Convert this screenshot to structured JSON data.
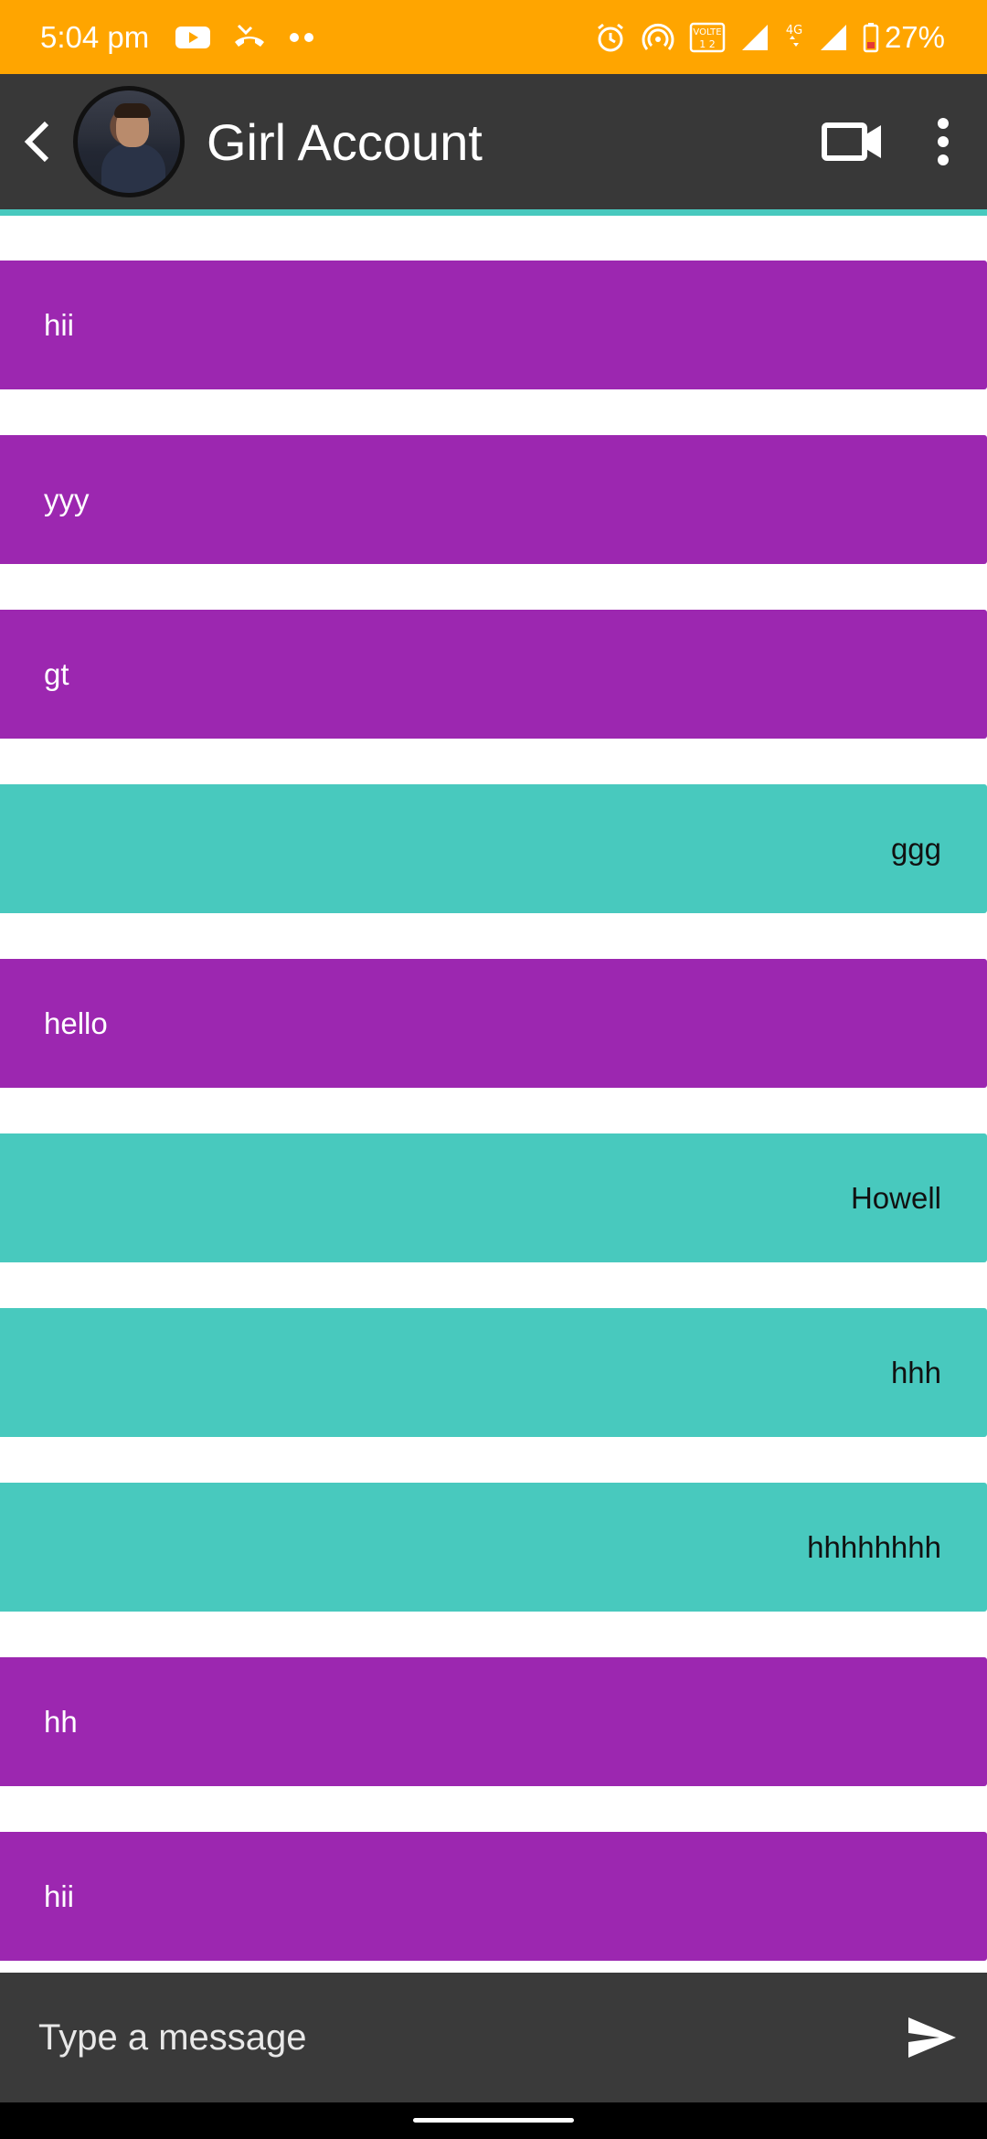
{
  "status_bar": {
    "time": "5:04 pm",
    "battery": "27%",
    "background": "#FFA500",
    "icons_left": [
      "youtube-icon",
      "missed-call-icon",
      "more-dots-icon"
    ],
    "icons_right": [
      "alarm-icon",
      "hotspot-icon",
      "volte-icon",
      "signal-icon",
      "4g-icon",
      "signal-icon",
      "battery-low-icon"
    ],
    "volte_label": "VOLTE",
    "network_label": "4G"
  },
  "header": {
    "title": "Girl Account",
    "background": "#383838",
    "accent": "#48C9BE"
  },
  "messages": [
    {
      "text": "hii",
      "from": "received"
    },
    {
      "text": "yyy",
      "from": "received"
    },
    {
      "text": "gt",
      "from": "received"
    },
    {
      "text": "ggg",
      "from": "sent"
    },
    {
      "text": "hello",
      "from": "received"
    },
    {
      "text": "Howell",
      "from": "sent"
    },
    {
      "text": "hhh",
      "from": "sent"
    },
    {
      "text": "hhhhhhhh",
      "from": "sent"
    },
    {
      "text": "hh",
      "from": "received"
    },
    {
      "text": "hii",
      "from": "received"
    }
  ],
  "colors": {
    "received_bubble": "#9C27B0",
    "sent_bubble": "#48C9BE"
  },
  "composer": {
    "placeholder": "Type a message",
    "value": ""
  }
}
